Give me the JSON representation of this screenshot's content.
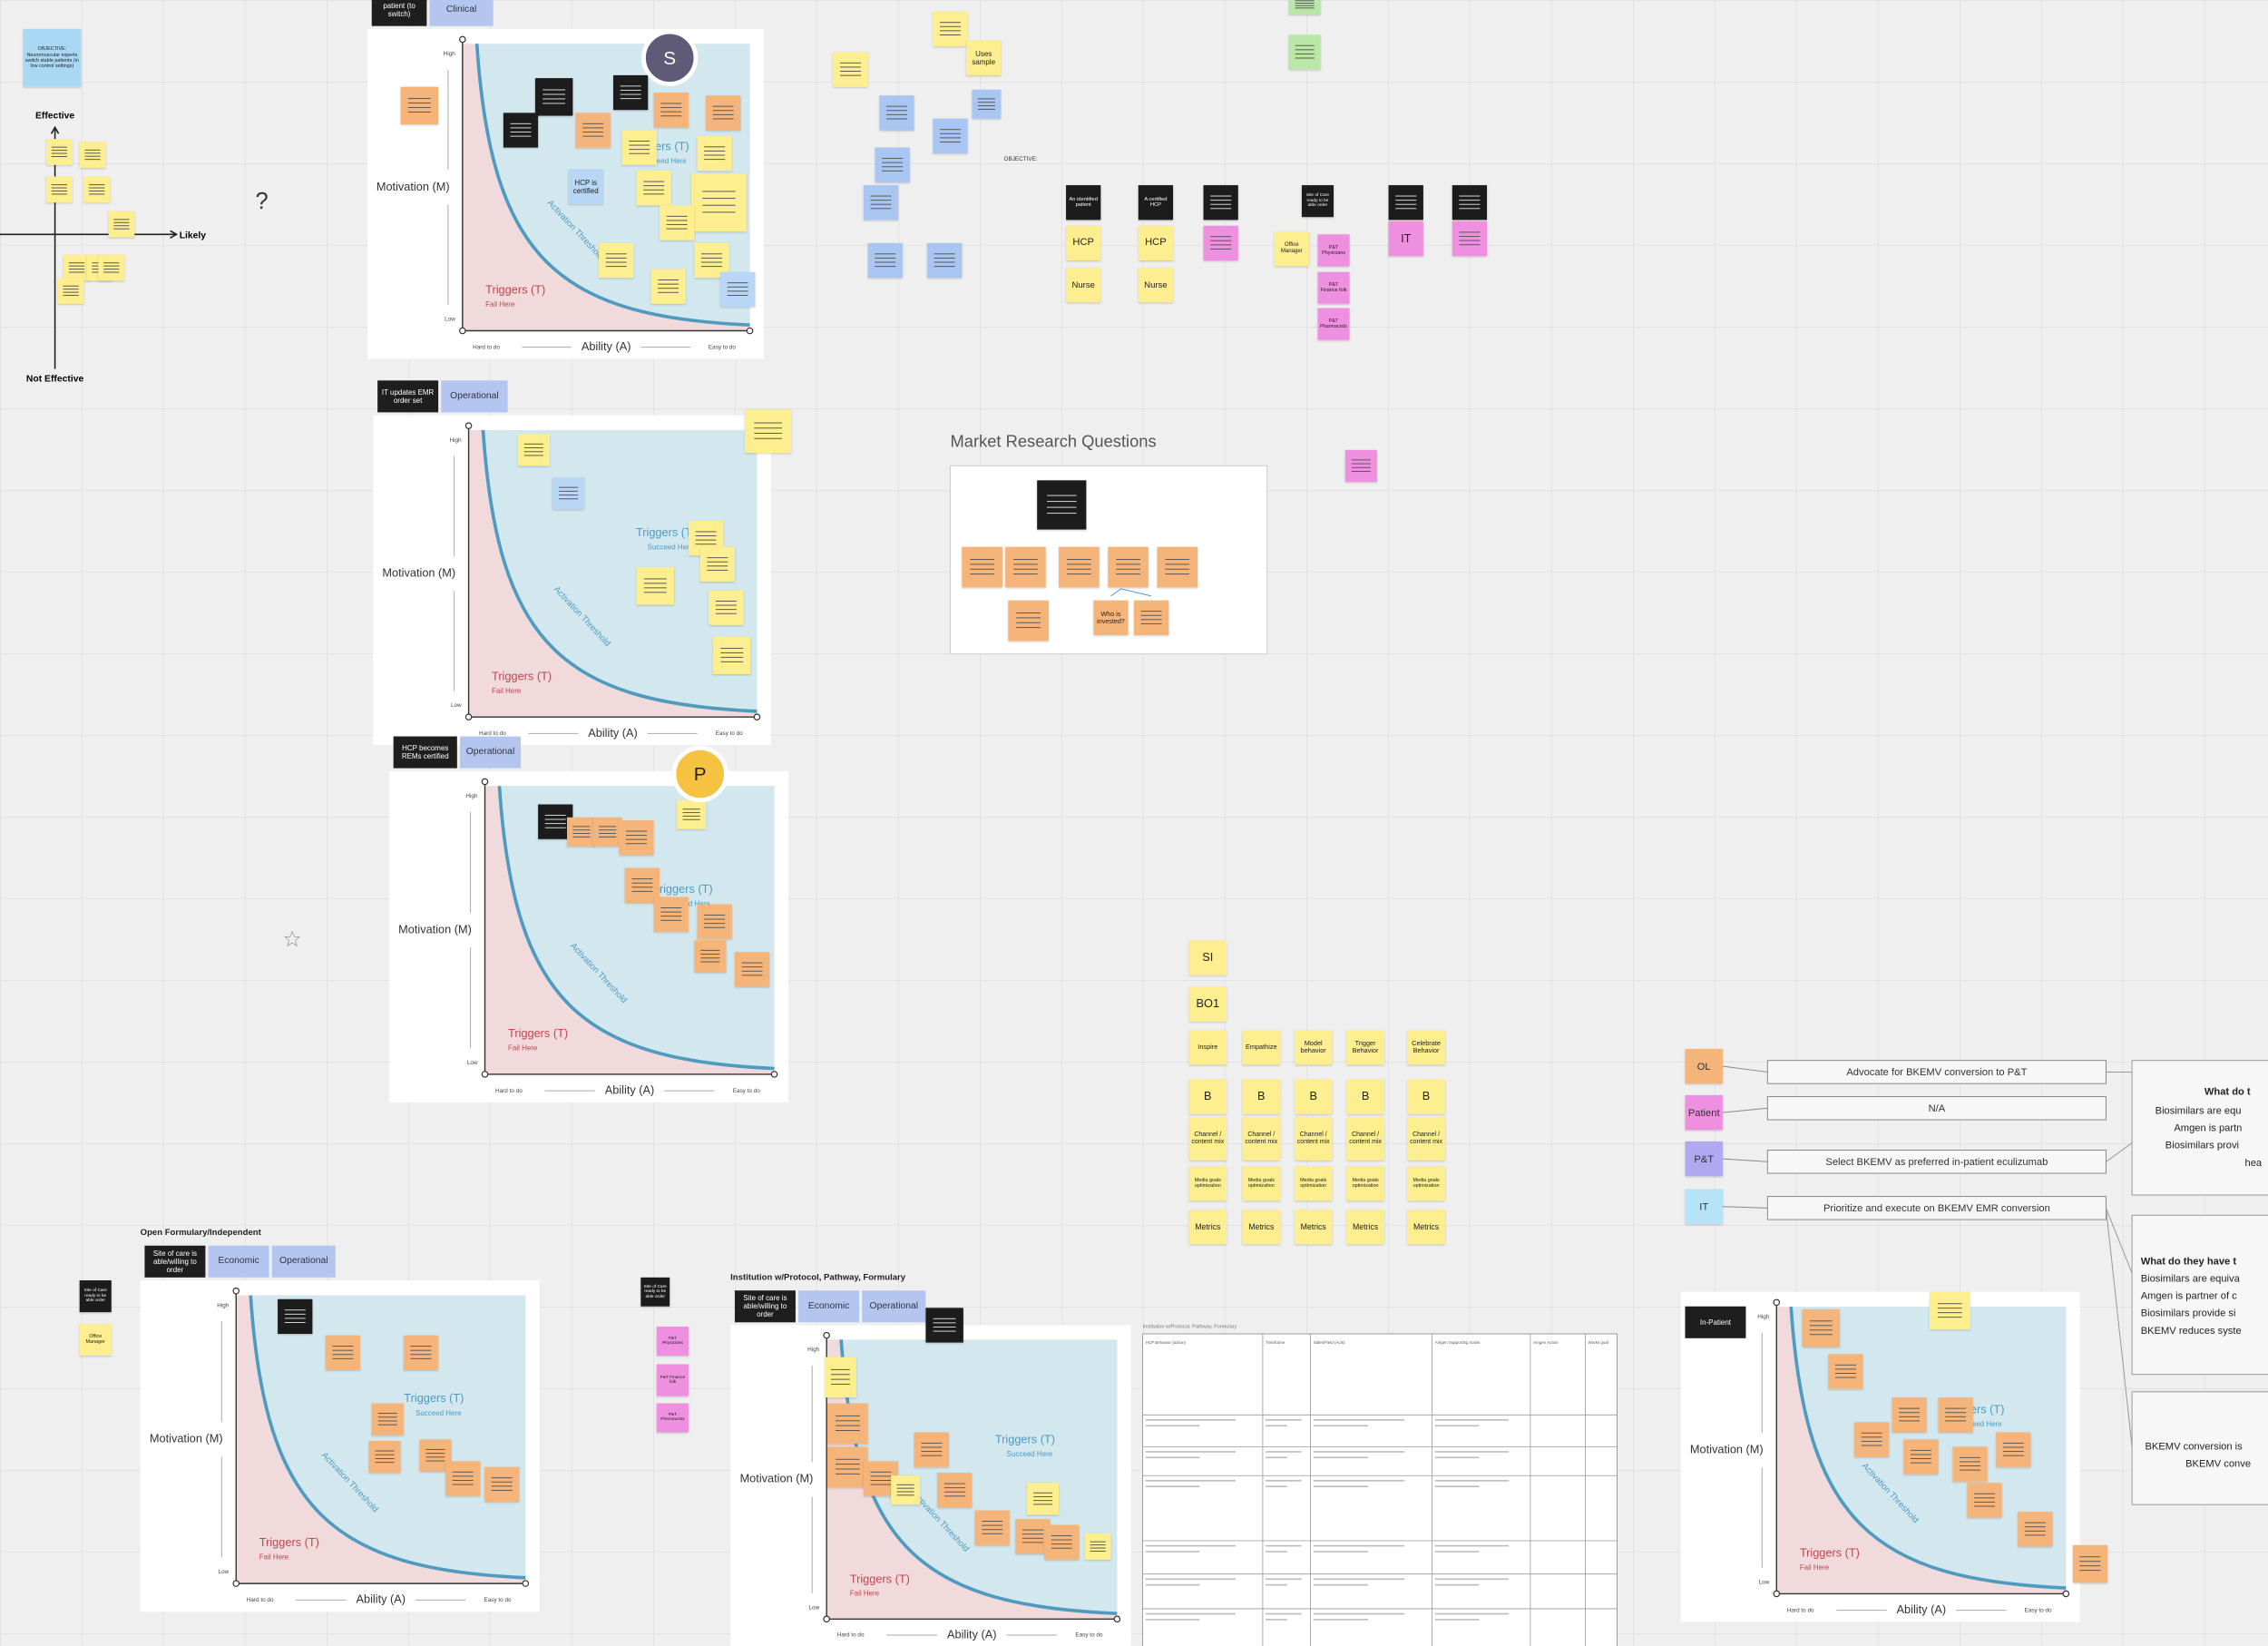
{
  "objective_board": {
    "matrix": {
      "top": "Effective",
      "bottom": "Not Effective",
      "right": "Likely"
    },
    "question": "?"
  },
  "model_labels": {
    "high": "High",
    "low": "Low",
    "y_axis": "Motivation (M)",
    "x_axis": "Ability (A)",
    "hard": "Hard to do",
    "easy": "Easy to do",
    "fail": "Triggers (T)",
    "fail_sub": "Fail Here",
    "succeed": "Triggers (T)",
    "succeed_sub": "Succeed Here",
    "threshold": "Activation Threshold"
  },
  "boards": [
    {
      "tags": [
        {
          "text": "patient (to switch)",
          "color": "#1e1e1e"
        },
        {
          "text": "Clinical",
          "color": "#b4c6f0"
        }
      ]
    },
    {
      "tags": [
        {
          "text": "IT updates EMR order set",
          "color": "#1e1e1e"
        },
        {
          "text": "Operational",
          "color": "#b4c6f0"
        }
      ]
    },
    {
      "tags": [
        {
          "text": "HCP becomes REMs certified",
          "color": "#1e1e1e"
        },
        {
          "text": "Operational",
          "color": "#b4c6f0"
        }
      ]
    },
    {
      "title": "Open Formulary/Independent",
      "tags": [
        {
          "text": "Site of care is able/willing to order",
          "color": "#1e1e1e"
        },
        {
          "text": "Economic",
          "color": "#b4c6f0"
        },
        {
          "text": "Operational",
          "color": "#b4c6f0"
        }
      ]
    },
    {
      "title": "Institution w/Protocol, Pathway, Formulary",
      "tags": [
        {
          "text": "Site of care is able/willing to order",
          "color": "#1e1e1e"
        },
        {
          "text": "Economic",
          "color": "#b4c6f0"
        },
        {
          "text": "Operational",
          "color": "#b4c6f0"
        }
      ]
    },
    {
      "tags": [
        {
          "text": "In-Patient",
          "color": "#1e1e1e"
        }
      ]
    }
  ],
  "avatars": [
    "S",
    "P"
  ],
  "objective_label": "OBJECTIVE:",
  "market_research": {
    "title": "Market Research Questions"
  },
  "stickies": [
    {
      "text": "OBJECTIVE: Neuromuscular experts switch stable patients (in low control settings)",
      "color": "#a9d8f5"
    },
    {
      "text": "Uses sample",
      "color": "#fdee8f"
    },
    {
      "text": "An identified patient",
      "color": "#1e1e1e"
    },
    {
      "text": "A certified HCP",
      "color": "#1e1e1e"
    },
    {
      "text": "Site of Care ready to be able order",
      "color": "#1e1e1e"
    },
    {
      "text": "HCP",
      "color": "#fdee8f"
    },
    {
      "text": "Nurse",
      "color": "#fdee8f"
    },
    {
      "text": "HCP",
      "color": "#fdee8f"
    },
    {
      "text": "Nurse",
      "color": "#fdee8f"
    },
    {
      "text": "Office Manager",
      "color": "#fdee8f"
    },
    {
      "text": "P&T Physicians",
      "color": "#ee8fe0"
    },
    {
      "text": "P&T Finance folk",
      "color": "#ee8fe0"
    },
    {
      "text": "P&T Pharmacists",
      "color": "#ee8fe0"
    },
    {
      "text": "IT",
      "color": "#ee8fe0"
    },
    {
      "text": "Who is invested?",
      "color": "#f5b57a"
    },
    {
      "text": "SI",
      "color": "#fdee8f"
    },
    {
      "text": "BO1",
      "color": "#fdee8f"
    },
    {
      "text": "Inspire",
      "color": "#fdee8f"
    },
    {
      "text": "Empathize",
      "color": "#fdee8f"
    },
    {
      "text": "Model behavior",
      "color": "#fdee8f"
    },
    {
      "text": "Trigger Behavior",
      "color": "#fdee8f"
    },
    {
      "text": "Celebrate Behavior",
      "color": "#fdee8f"
    },
    {
      "text": "B",
      "color": "#fdee8f"
    },
    {
      "text": "B",
      "color": "#fdee8f"
    },
    {
      "text": "B",
      "color": "#fdee8f"
    },
    {
      "text": "B",
      "color": "#fdee8f"
    },
    {
      "text": "B",
      "color": "#fdee8f"
    },
    {
      "text": "Channel / content mix",
      "color": "#fdee8f"
    },
    {
      "text": "Channel / content mix",
      "color": "#fdee8f"
    },
    {
      "text": "Channel / content mix",
      "color": "#fdee8f"
    },
    {
      "text": "Channel / content mix",
      "color": "#fdee8f"
    },
    {
      "text": "Channel / content mix",
      "color": "#fdee8f"
    },
    {
      "text": "Media goals optimization",
      "color": "#fdee8f"
    },
    {
      "text": "Media goals optimization",
      "color": "#fdee8f"
    },
    {
      "text": "Media goals optimization",
      "color": "#fdee8f"
    },
    {
      "text": "Media goals optimization",
      "color": "#fdee8f"
    },
    {
      "text": "Media goals optimization",
      "color": "#fdee8f"
    },
    {
      "text": "Metrics",
      "color": "#fdee8f"
    },
    {
      "text": "Metrics",
      "color": "#fdee8f"
    },
    {
      "text": "Metrics",
      "color": "#fdee8f"
    },
    {
      "text": "Metrics",
      "color": "#fdee8f"
    },
    {
      "text": "Metrics",
      "color": "#fdee8f"
    },
    {
      "text": "Site of Care ready to be able order",
      "color": "#1e1e1e"
    },
    {
      "text": "Office Manager",
      "color": "#fdee8f"
    },
    {
      "text": "Site of Care ready to be able order",
      "color": "#1e1e1e"
    },
    {
      "text": "P&T Physicians",
      "color": "#ee8fe0"
    },
    {
      "text": "P&T Finance folk",
      "color": "#ee8fe0"
    },
    {
      "text": "P&T Pharmacists",
      "color": "#ee8fe0"
    },
    {
      "text": "HCP is certified",
      "color": "#b8d6f5"
    }
  ],
  "roles": [
    {
      "tag": "OL",
      "color": "#f5b57a",
      "action": "Advocate for BKEMV conversion to P&T"
    },
    {
      "tag": "Patient",
      "color": "#ee8fe0",
      "action": "N/A"
    },
    {
      "tag": "P&T",
      "color": "#b0a8f0",
      "action": "Select BKEMV as preferred in-patient eculizumab"
    },
    {
      "tag": "IT",
      "color": "#b5e3f7",
      "action": "Prioritize and execute on BKEMV EMR conversion"
    }
  ],
  "panels": [
    {
      "heading": "What do t",
      "lines": [
        "Biosimilars are equ",
        "Amgen is partn",
        "Biosimilars provi",
        "hea"
      ]
    },
    {
      "heading": "What do they have t",
      "lines": [
        "Biosimilars are equiva",
        "Amgen is partner of c",
        "Biosimilars provide si",
        "BKEMV reduces syste"
      ]
    },
    {
      "lines": [
        "BKEMV conversion is",
        "BKEMV conve"
      ]
    }
  ],
  "table": {
    "title": "Institution w/Protocol, Pathway, Formulary",
    "header": [
      "HCP Behavior (action)",
      "Timeframe",
      "Sales/Field (Acts)",
      "Amgen Supporting Gains",
      "Amgen Action",
      "Works goal"
    ]
  }
}
